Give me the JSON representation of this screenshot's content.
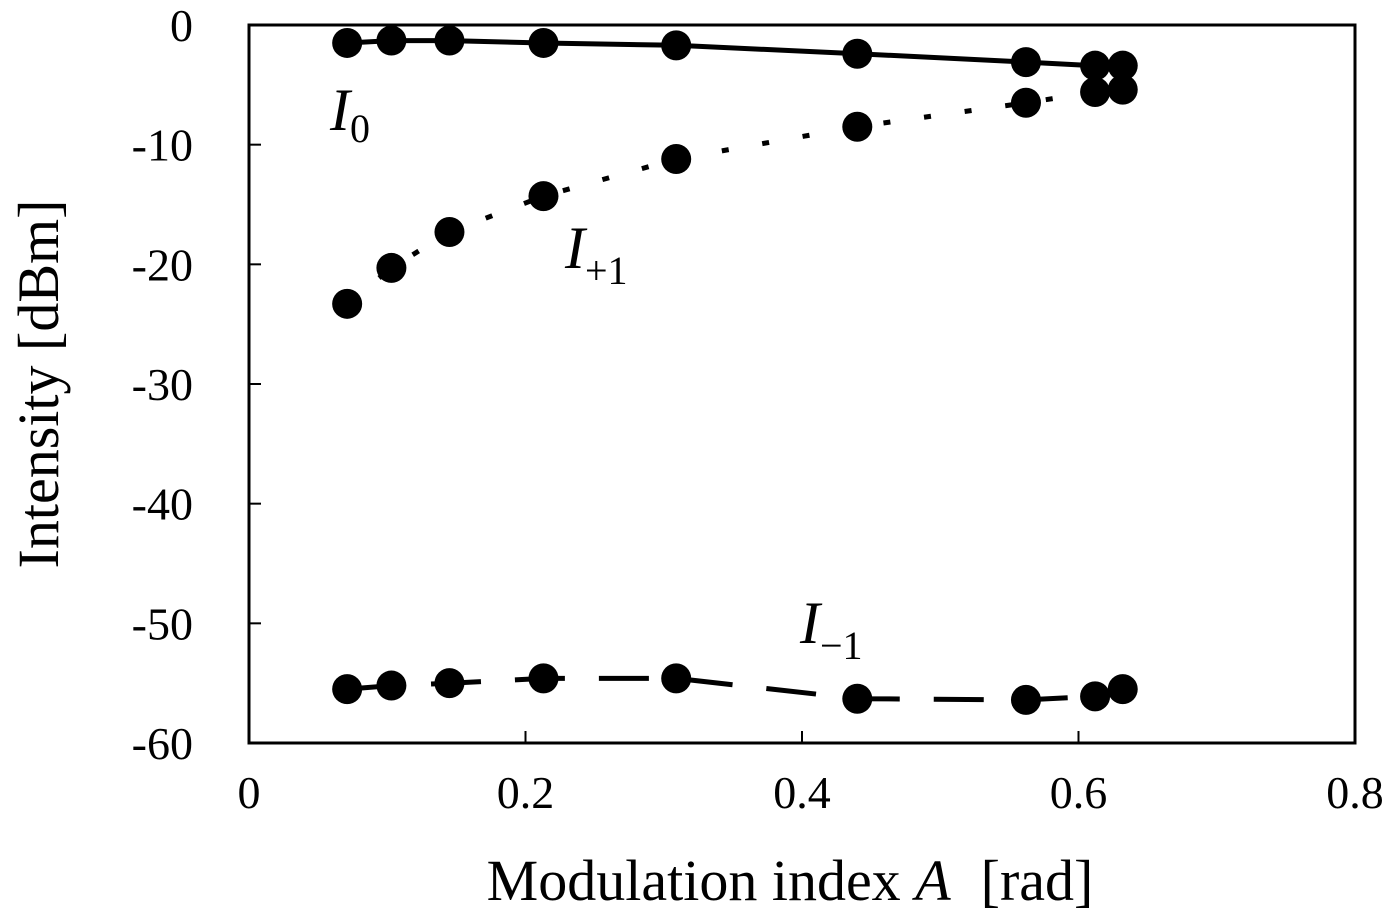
{
  "chart_data": {
    "type": "line",
    "xlabel_text": "Modulation index ",
    "xlabel_var": "A",
    "xlabel_unit": "[rad]",
    "ylabel": "Intensity [dBm]",
    "xlim": [
      0,
      0.8
    ],
    "ylim": [
      -60,
      0
    ],
    "xticks": [
      0,
      0.2,
      0.4,
      0.6,
      0.8
    ],
    "xtick_labels": [
      "0",
      "0.2",
      "0.4",
      "0.6",
      "0.8"
    ],
    "yticks": [
      0,
      -10,
      -20,
      -30,
      -40,
      -50,
      -60
    ],
    "ytick_labels": [
      "0",
      "-10",
      "-20",
      "-30",
      "-40",
      "-50",
      "-60"
    ],
    "grid": false,
    "x": [
      0.071,
      0.103,
      0.145,
      0.213,
      0.309,
      0.44,
      0.562,
      0.612,
      0.632
    ],
    "series": [
      {
        "label_main": "I",
        "label_sub": "0",
        "line_style": "solid",
        "values": [
          -1.5,
          -1.3,
          -1.3,
          -1.5,
          -1.7,
          -2.4,
          -3.1,
          -3.4,
          -3.4
        ]
      },
      {
        "label_main": "I",
        "label_sub": "+1",
        "line_style": "dotted",
        "values": [
          -23.3,
          -20.3,
          -17.3,
          -14.3,
          -11.2,
          -8.5,
          -6.5,
          -5.6,
          -5.4
        ]
      },
      {
        "label_main": "I",
        "label_sub": "−1",
        "line_style": "dashed",
        "values": [
          -55.5,
          -55.2,
          -55.0,
          -54.6,
          -54.6,
          -56.3,
          -56.4,
          -56.1,
          -55.5
        ]
      }
    ]
  }
}
